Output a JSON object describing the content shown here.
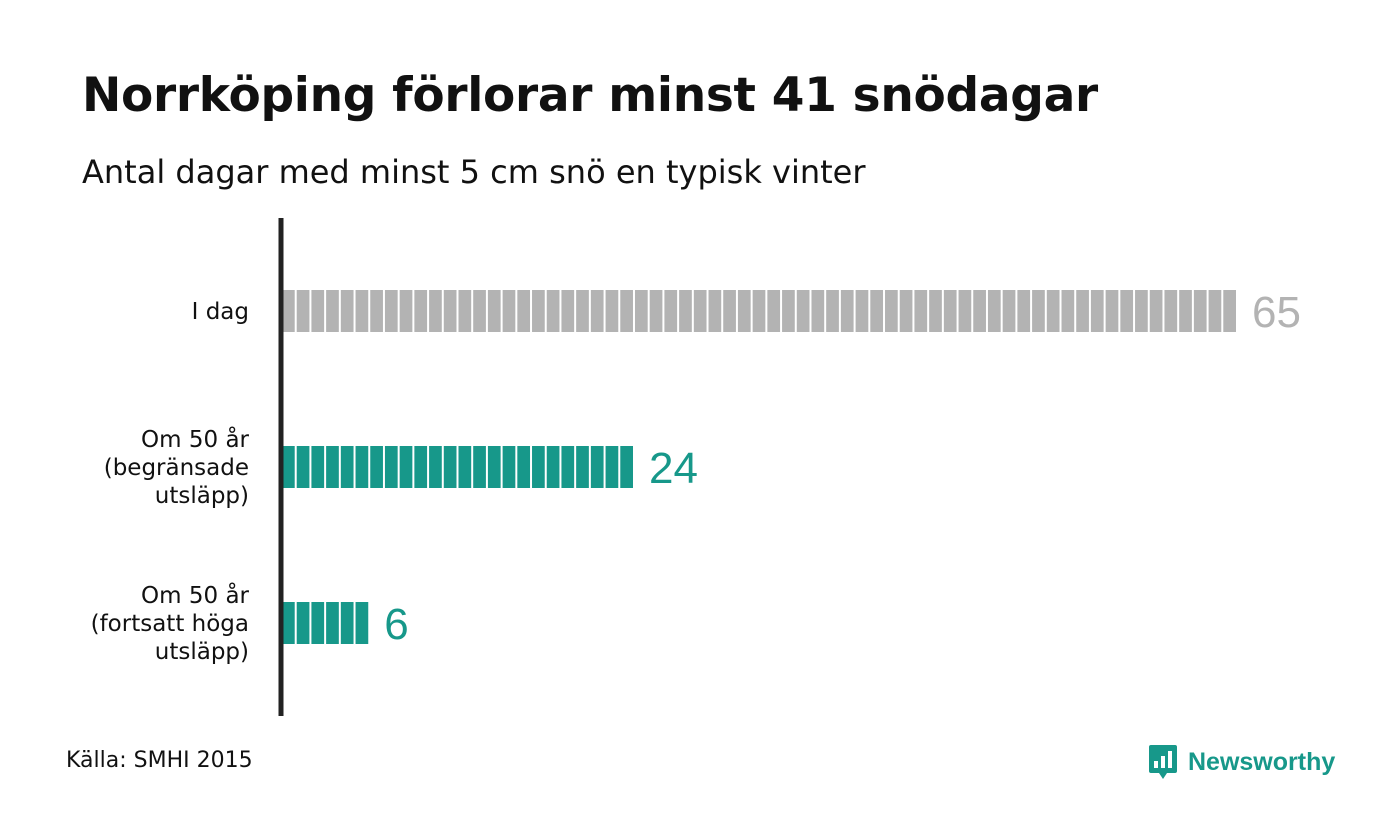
{
  "chart_data": {
    "type": "bar",
    "orientation": "horizontal",
    "title": "Norrköping förlorar minst 41 snödagar",
    "subtitle": "Antal dagar med minst 5 cm snö en typisk vinter",
    "categories": [
      [
        "I dag"
      ],
      [
        "Om 50 år",
        "(begränsade",
        "utsläpp)"
      ],
      [
        "Om 50 år",
        "(fortsatt höga",
        "utsläpp)"
      ]
    ],
    "values": [
      65,
      24,
      6
    ],
    "colors": [
      "#b3b3b3",
      "#17988a",
      "#17988a"
    ],
    "value_label_colors": [
      "#b3b3b3",
      "#17988a",
      "#17988a"
    ],
    "xlim": [
      0,
      65
    ],
    "grid": false,
    "bar_style": "segmented, one segment per day"
  },
  "footer": {
    "source": "Källa: SMHI 2015",
    "brand": "Newsworthy",
    "brand_color": "#17988a",
    "brand_icon": "bar-chart-speech-bubble-icon"
  }
}
